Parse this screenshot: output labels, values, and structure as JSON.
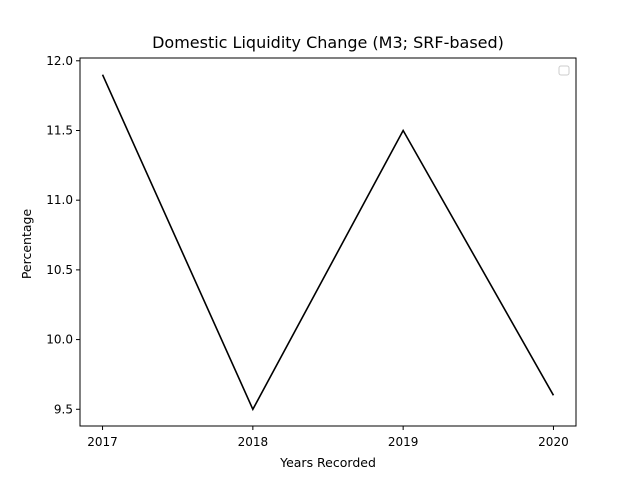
{
  "chart_data": {
    "type": "line",
    "title": "Domestic Liquidity Change (M3; SRF-based)",
    "xlabel": "Years Recorded",
    "ylabel": "Percentage",
    "categories": [
      "2017",
      "2018",
      "2019",
      "2020"
    ],
    "series": [
      {
        "values": [
          11.9,
          9.5,
          11.5,
          9.6
        ]
      }
    ],
    "xlim": [
      2016.85,
      2020.15
    ],
    "ylim": [
      9.38,
      12.02
    ],
    "yticks": [
      9.5,
      10.0,
      10.5,
      11.0,
      11.5,
      12.0
    ],
    "ytick_labels": [
      "9.5",
      "10.0",
      "10.5",
      "11.0",
      "11.5",
      "12.0"
    ],
    "grid": false,
    "legend": {
      "placement": "top-right",
      "entries": []
    },
    "colors": {
      "line": "#000000",
      "axes": "#000000",
      "background": "#ffffff"
    }
  }
}
